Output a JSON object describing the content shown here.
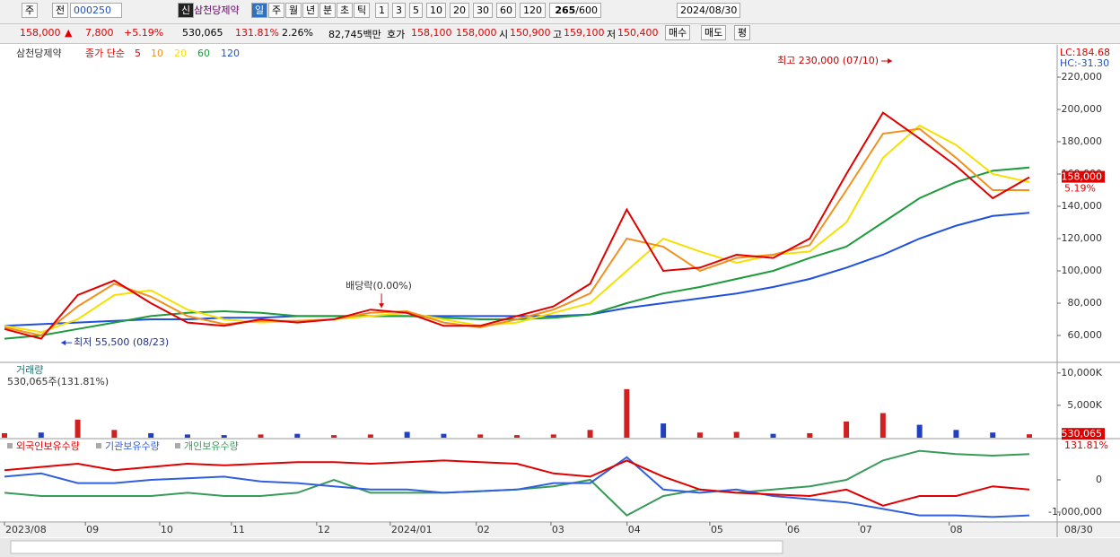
{
  "toolbar": {
    "period_type": "주",
    "prev": "전",
    "code": "000250",
    "badge": "신",
    "name": "삼천당제약",
    "intervals": [
      "일",
      "주",
      "월",
      "년",
      "분",
      "초",
      "틱"
    ],
    "counts": [
      "1",
      "3",
      "5",
      "10",
      "20",
      "30",
      "60",
      "120"
    ],
    "count": "265",
    "total": "/600",
    "date": "2024/08/30"
  },
  "info_bar": {
    "price": "158,000",
    "arrow": "▲",
    "change": "7,800",
    "rate": "+5.19%",
    "volume": "530,065",
    "volume_rate": "131.81%",
    "turnover": "2.26%",
    "amount": "82,745백만",
    "ask_label": "호가",
    "ask": "158,100",
    "bid": "158,000",
    "open_label": "시",
    "open": "150,900",
    "high_label": "고",
    "high": "159,100",
    "low_label": "저",
    "low": "150,400",
    "buy": "매수",
    "sell": "매도",
    "avg": "평"
  },
  "chart_data": [
    {
      "type": "line",
      "title": "삼천당제약",
      "legend_title": "종가 단순",
      "scale_labels": [
        "LC:184.68",
        "HC:-31.30"
      ],
      "categories": [
        null,
        null,
        null,
        null,
        null,
        null,
        null,
        null,
        null,
        null,
        null,
        null,
        null,
        null,
        null,
        null,
        null,
        null,
        null,
        null,
        null,
        null,
        null,
        null,
        null,
        null,
        null,
        null,
        null
      ],
      "series": [
        {
          "name": "5",
          "color": "#e00000",
          "values": [
            64000,
            58000,
            85000,
            94000,
            80000,
            68000,
            66000,
            70000,
            68000,
            70000,
            76000,
            74000,
            66000,
            66000,
            72000,
            78000,
            92000,
            138000,
            100000,
            102000,
            110000,
            108000,
            120000,
            160000,
            198000,
            182000,
            165000,
            145000,
            158000
          ]
        },
        {
          "name": "10",
          "color": "#f0901e",
          "values": [
            65000,
            60000,
            78000,
            92000,
            84000,
            72000,
            67000,
            69000,
            69000,
            70000,
            74000,
            75000,
            68000,
            65000,
            70000,
            76000,
            86000,
            120000,
            115000,
            100000,
            108000,
            110000,
            116000,
            150000,
            185000,
            188000,
            170000,
            150000,
            150000
          ]
        },
        {
          "name": "20",
          "color": "#f5e000",
          "values": [
            66000,
            62000,
            70000,
            85000,
            88000,
            76000,
            70000,
            68000,
            69000,
            70000,
            72000,
            74000,
            70000,
            66000,
            68000,
            74000,
            80000,
            100000,
            120000,
            112000,
            105000,
            110000,
            112000,
            130000,
            170000,
            190000,
            178000,
            160000,
            155000
          ]
        },
        {
          "name": "60",
          "color": "#1e9a3c",
          "values": [
            58000,
            60000,
            64000,
            68000,
            72000,
            74000,
            75000,
            74000,
            72000,
            72000,
            72000,
            72000,
            71000,
            70000,
            70000,
            71000,
            73000,
            80000,
            86000,
            90000,
            95000,
            100000,
            108000,
            115000,
            130000,
            145000,
            155000,
            162000,
            164000
          ]
        },
        {
          "name": "120",
          "color": "#2050e0",
          "values": [
            66000,
            67000,
            68000,
            69000,
            70000,
            70000,
            71000,
            71000,
            72000,
            72000,
            72000,
            72000,
            72000,
            72000,
            72000,
            72000,
            73000,
            77000,
            80000,
            83000,
            86000,
            90000,
            95000,
            102000,
            110000,
            120000,
            128000,
            134000,
            136000
          ]
        }
      ],
      "ylim": [
        43900,
        238900
      ],
      "yticks": [
        {
          "value": 60000,
          "label": "60,000"
        },
        {
          "value": 80000,
          "label": "80,000"
        },
        {
          "value": 100000,
          "label": "100,000"
        },
        {
          "value": 120000,
          "label": "120,000"
        },
        {
          "value": 140000,
          "label": "140,000"
        },
        {
          "value": 160000,
          "label": "160,000"
        },
        {
          "value": 180000,
          "label": "180,000"
        },
        {
          "value": 200000,
          "label": "200,000"
        },
        {
          "value": 220000,
          "label": "220,000"
        }
      ],
      "marker": {
        "value": 158000,
        "label": "158,000",
        "change": "5.19%"
      },
      "annotations": [
        {
          "text": "최고 230,000 (07/10)",
          "x": 24.3,
          "y": 230000,
          "dir": "right"
        },
        {
          "text": "최저 55,500 (08/23)",
          "x": 1.5,
          "y": 55500,
          "dir": "left"
        },
        {
          "text": "배당락(0.00%)",
          "x": 10.3,
          "y": 76000,
          "dir": "down"
        }
      ]
    },
    {
      "type": "bar",
      "title": "거래량",
      "subtitle": "530,065주(131.81%)",
      "up_color": "#d02020",
      "down_color": "#2040c0",
      "values": [
        700,
        800,
        2800,
        1200,
        700,
        500,
        400,
        500,
        600,
        400,
        500,
        900,
        600,
        500,
        400,
        500,
        1200,
        7500,
        2200,
        800,
        900,
        600,
        700,
        2500,
        3800,
        2000,
        1200,
        800,
        530.065
      ],
      "ylim": [
        0,
        11500
      ],
      "yticks": [
        {
          "value": 5000,
          "label": "5,000K"
        },
        {
          "value": 10000,
          "label": "10,000K"
        }
      ],
      "marker": {
        "value": 530.065,
        "label": "530,065",
        "change": "131.81%"
      }
    },
    {
      "type": "line",
      "series": [
        {
          "name": "외국인보유수량",
          "color": "#e00000",
          "values": [
            300000,
            400000,
            500000,
            300000,
            400000,
            500000,
            450000,
            500000,
            550000,
            550000,
            500000,
            550000,
            600000,
            550000,
            500000,
            200000,
            100000,
            600000,
            100000,
            -300000,
            -400000,
            -450000,
            -500000,
            -300000,
            -800000,
            -500000,
            -500000,
            -200000,
            -300000
          ]
        },
        {
          "name": "기관보유수량",
          "color": "#3060e0",
          "values": [
            100000,
            200000,
            -100000,
            -100000,
            0,
            50000,
            100000,
            -50000,
            -100000,
            -200000,
            -300000,
            -300000,
            -400000,
            -350000,
            -300000,
            -100000,
            -100000,
            700000,
            -300000,
            -400000,
            -300000,
            -500000,
            -600000,
            -700000,
            -900000,
            -1100000,
            -1100000,
            -1150000,
            -1100000
          ]
        },
        {
          "name": "개인보유수량",
          "color": "#3a9a5a",
          "values": [
            -400000,
            -500000,
            -500000,
            -500000,
            -500000,
            -400000,
            -500000,
            -500000,
            -400000,
            0,
            -400000,
            -400000,
            -400000,
            -350000,
            -300000,
            -200000,
            0,
            -1100000,
            -500000,
            -300000,
            -400000,
            -300000,
            -200000,
            0,
            600000,
            900000,
            800000,
            750000,
            800000
          ]
        }
      ],
      "ylim": [
        -1305000,
        1250000
      ],
      "yticks": [
        0,
        {
          "value": -1000000,
          "label": "-1,000,000"
        }
      ],
      "xticks": [
        {
          "value": 0,
          "label": "2023/08"
        },
        {
          "value": 2.21,
          "label": "09"
        },
        {
          "value": 4.24,
          "label": "10"
        },
        {
          "value": 6.2,
          "label": "11"
        },
        {
          "value": 8.53,
          "label": "12"
        },
        {
          "value": 10.54,
          "label": "2024/01"
        },
        {
          "value": 12.89,
          "label": "02"
        },
        {
          "value": 14.93,
          "label": "03"
        },
        {
          "value": 17.01,
          "label": "04"
        },
        {
          "value": 19.27,
          "label": "05"
        },
        {
          "value": 21.36,
          "label": "06"
        },
        {
          "value": 23.34,
          "label": "07"
        },
        {
          "value": 25.81,
          "label": "08"
        }
      ],
      "end_label": "08/30"
    }
  ]
}
